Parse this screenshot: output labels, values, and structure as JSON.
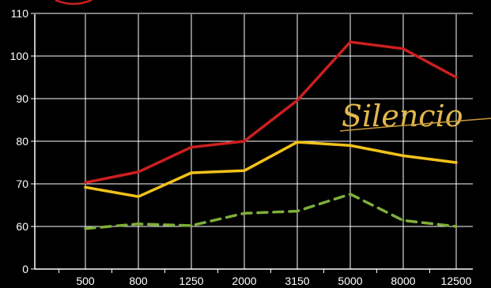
{
  "chart_data": {
    "type": "line",
    "categories": [
      "500",
      "800",
      "1250",
      "2000",
      "3150",
      "5000",
      "8000",
      "12500"
    ],
    "y_ticks": [
      "0",
      "60",
      "70",
      "80",
      "90",
      "100",
      "110"
    ],
    "ylim": [
      0,
      110
    ],
    "grid": true,
    "series": [
      {
        "values": [
          70.3,
          72.8,
          78.6,
          80.0,
          89.6,
          103.3,
          101.7,
          95.0
        ],
        "color": "#cc1f1f",
        "style": "solid"
      },
      {
        "values": [
          69.2,
          67.0,
          72.6,
          73.1,
          79.8,
          79.0,
          76.6,
          75.0
        ],
        "color": "#f2c21a",
        "style": "solid"
      },
      {
        "values": [
          59.5,
          60.6,
          60.2,
          63.1,
          63.6,
          67.6,
          61.4,
          60.0
        ],
        "color": "#7fae3a",
        "style": "dashed"
      }
    ],
    "background": "#000000",
    "grid_color": "#ffffff"
  },
  "brand": {
    "text": "Silencio"
  }
}
